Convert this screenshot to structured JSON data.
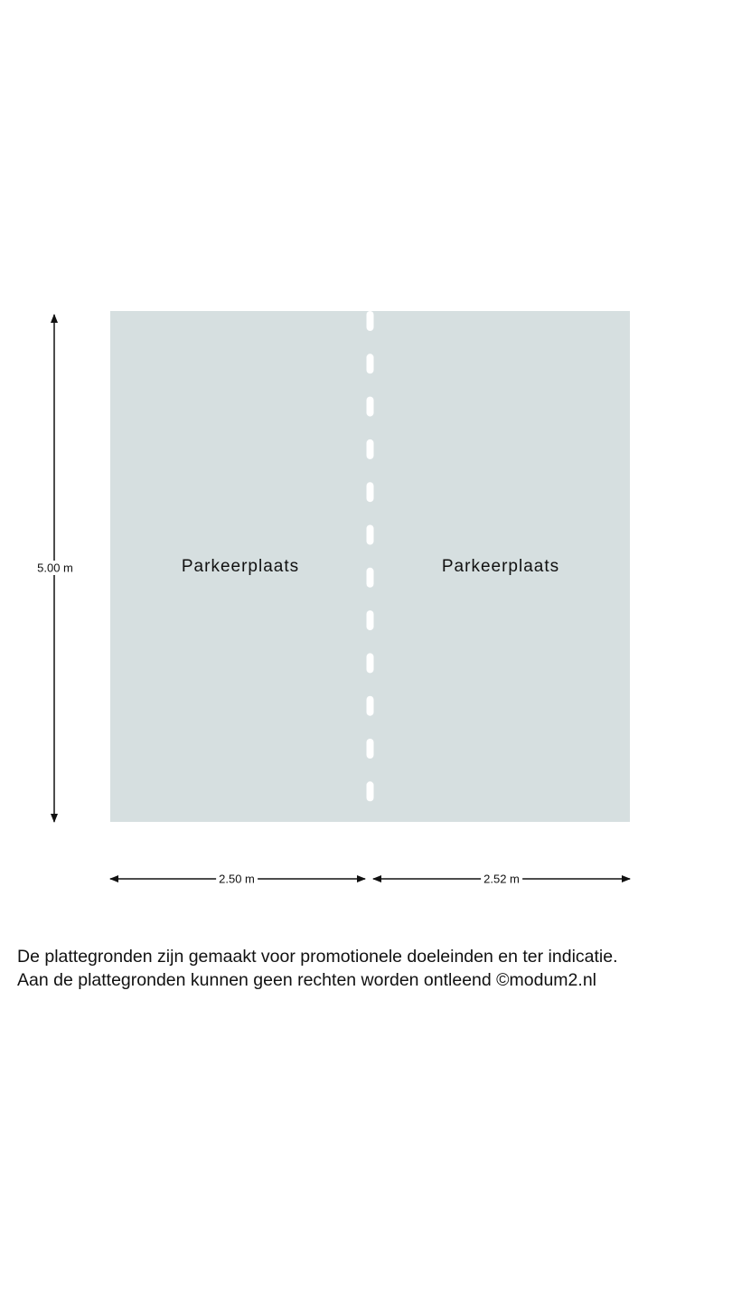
{
  "floorplan": {
    "fill_color": "#d6dfe0",
    "rooms": [
      {
        "label": "Parkeerplaats"
      },
      {
        "label": "Parkeerplaats"
      }
    ],
    "dimensions": {
      "height": "5.00 m",
      "width_left": "2.50 m",
      "width_right": "2.52 m"
    }
  },
  "disclaimer": {
    "line1": "De plattegronden zijn gemaakt voor promotionele doeleinden en ter indicatie.",
    "line2": "Aan de plattegronden kunnen geen rechten worden ontleend ©modum2.nl"
  }
}
